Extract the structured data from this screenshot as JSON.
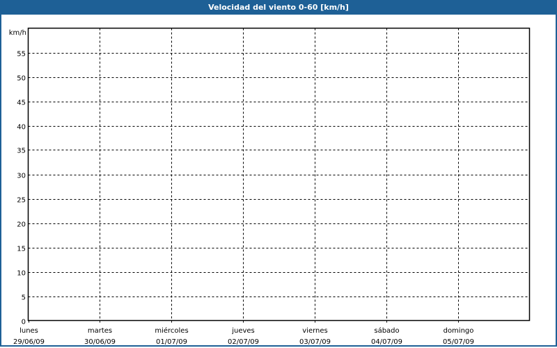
{
  "chart_data": {
    "type": "line",
    "title": "Velocidad del viento 0-60 [km/h]",
    "ylabel": "km/h",
    "xlabel": "",
    "ylim": [
      0,
      60
    ],
    "yticks": [
      0,
      5,
      10,
      15,
      20,
      25,
      30,
      35,
      40,
      45,
      50,
      55
    ],
    "grid": true,
    "categories": [
      {
        "day": "lunes",
        "date": "29/06/09"
      },
      {
        "day": "martes",
        "date": "30/06/09"
      },
      {
        "day": "miércoles",
        "date": "01/07/09"
      },
      {
        "day": "jueves",
        "date": "02/07/09"
      },
      {
        "day": "viernes",
        "date": "03/07/09"
      },
      {
        "day": "sábado",
        "date": "04/07/09"
      },
      {
        "day": "domingo",
        "date": "05/07/09"
      }
    ],
    "series": [],
    "colors": {
      "titlebar": "#1e6096",
      "title_text": "#ffffff"
    }
  }
}
